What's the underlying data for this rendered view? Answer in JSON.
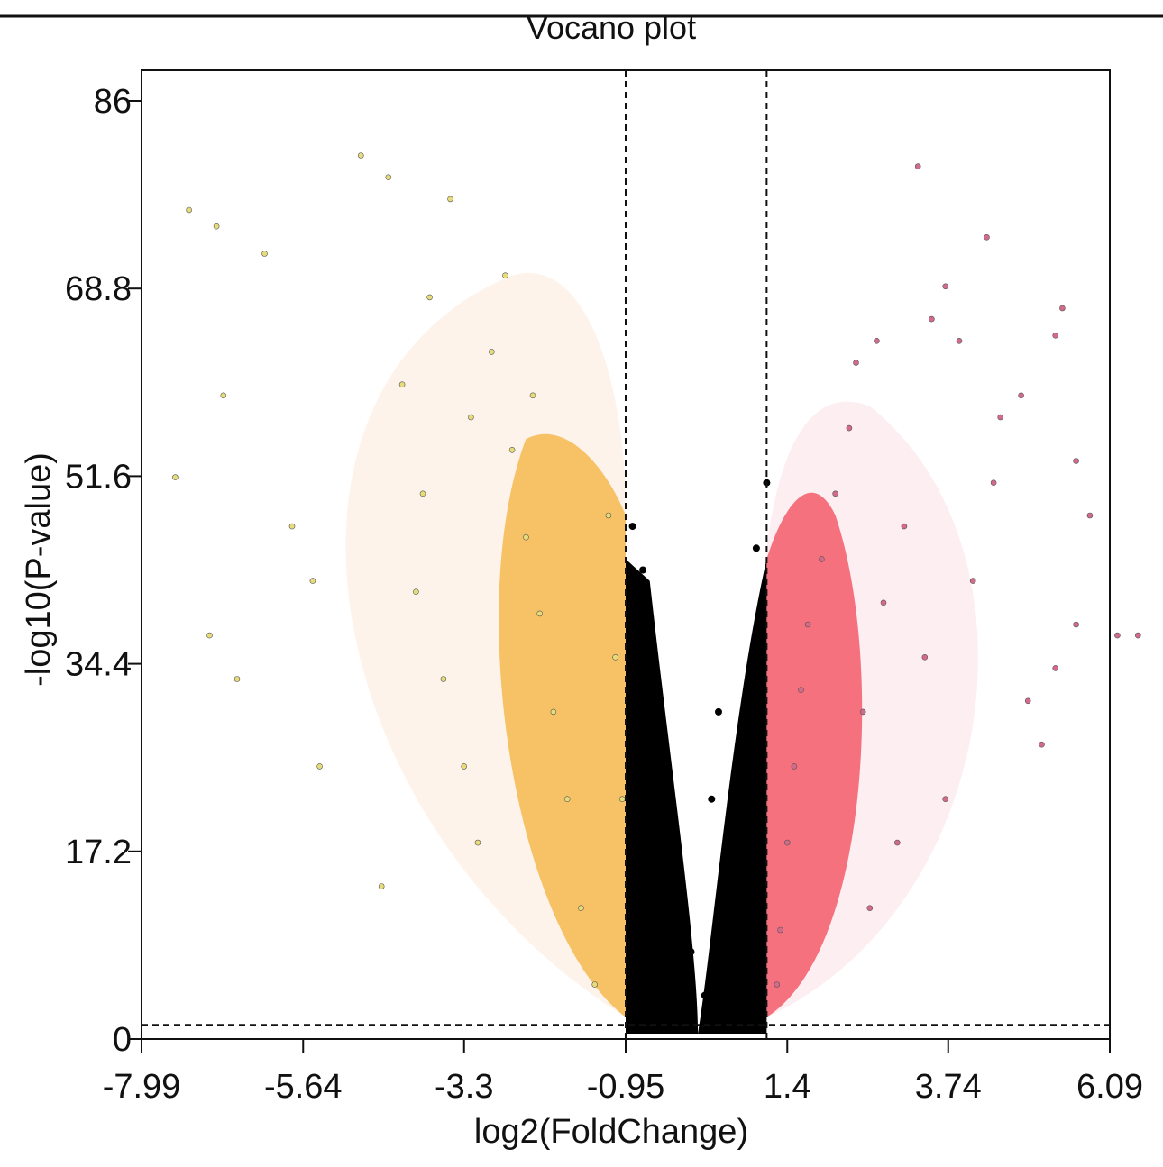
{
  "chart_data": {
    "type": "scatter",
    "title": "Vocano plot",
    "xlabel": "log2(FoldChange)",
    "ylabel": "-log10(P-value)",
    "xlim": [
      -7.99,
      6.09
    ],
    "ylim": [
      0,
      86
    ],
    "x_ticks": [
      "-7.99",
      "-5.64",
      "-3.3",
      "-0.95",
      "1.4",
      "3.74",
      "6.09"
    ],
    "y_ticks": [
      "0",
      "17.2",
      "34.4",
      "51.6",
      "68.8",
      "86"
    ],
    "thresholds": {
      "log2fc_low": -0.95,
      "log2fc_high": 1.1,
      "neg_log10_p": 1.3
    },
    "grid": false,
    "legend": "none",
    "colors": {
      "down": "#f5b84e",
      "down_outer": "#e8dc7a",
      "not_significant": "#000000",
      "up": "#f25a68",
      "up_outer": "#d46a8a"
    },
    "series": [
      {
        "values": [
          [
            -7.3,
            76
          ],
          [
            -6.9,
            74.5
          ],
          [
            -6.2,
            72
          ],
          [
            -4.8,
            81
          ],
          [
            -4.4,
            79
          ],
          [
            -7.5,
            51.5
          ],
          [
            -6.8,
            59
          ],
          [
            -7.0,
            37
          ],
          [
            -6.6,
            33
          ],
          [
            -5.8,
            47
          ],
          [
            -5.5,
            42
          ],
          [
            -5.4,
            25
          ],
          [
            -4.5,
            14
          ],
          [
            -3.8,
            68
          ],
          [
            -3.5,
            77
          ],
          [
            -4.2,
            60
          ],
          [
            -3.9,
            50
          ],
          [
            -4.0,
            41
          ],
          [
            -3.6,
            33
          ],
          [
            -3.3,
            25
          ],
          [
            -3.1,
            18
          ],
          [
            -2.9,
            63
          ],
          [
            -2.6,
            54
          ],
          [
            -2.4,
            46
          ],
          [
            -2.2,
            39
          ],
          [
            -2.0,
            30
          ],
          [
            -1.8,
            22
          ],
          [
            -1.6,
            12
          ],
          [
            -1.4,
            5
          ],
          [
            -1.2,
            48
          ],
          [
            -1.1,
            35
          ],
          [
            -1.0,
            22
          ],
          [
            -2.7,
            70
          ],
          [
            -3.2,
            57
          ],
          [
            -2.3,
            59
          ]
        ]
      },
      {
        "values": [
          [
            -0.85,
            47
          ],
          [
            -0.7,
            43
          ],
          [
            -0.6,
            36
          ],
          [
            -0.5,
            30
          ],
          [
            -0.4,
            25
          ],
          [
            -0.3,
            20
          ],
          [
            -0.2,
            14
          ],
          [
            0.0,
            8
          ],
          [
            0.2,
            4
          ],
          [
            0.35,
            1
          ],
          [
            0.5,
            3
          ],
          [
            0.6,
            8
          ],
          [
            0.7,
            14
          ],
          [
            0.8,
            22
          ],
          [
            0.9,
            30
          ],
          [
            1.0,
            38
          ],
          [
            0.95,
            45
          ],
          [
            1.1,
            51
          ],
          [
            0.4,
            30
          ],
          [
            0.3,
            22
          ],
          [
            -0.6,
            12
          ],
          [
            -0.9,
            33
          ],
          [
            0.7,
            6
          ],
          [
            -0.1,
            2
          ]
        ]
      },
      {
        "values": [
          [
            3.3,
            80
          ],
          [
            4.3,
            73.5
          ],
          [
            3.7,
            69
          ],
          [
            3.5,
            66
          ],
          [
            3.9,
            64
          ],
          [
            5.4,
            67
          ],
          [
            5.3,
            64.5
          ],
          [
            4.8,
            59
          ],
          [
            4.5,
            57
          ],
          [
            2.7,
            64
          ],
          [
            2.4,
            62
          ],
          [
            5.6,
            53
          ],
          [
            5.8,
            48
          ],
          [
            6.2,
            37
          ],
          [
            6.5,
            37
          ],
          [
            5.6,
            38
          ],
          [
            5.1,
            27
          ],
          [
            5.3,
            34
          ],
          [
            4.9,
            31
          ],
          [
            2.3,
            56
          ],
          [
            2.1,
            50
          ],
          [
            1.9,
            44
          ],
          [
            1.7,
            38
          ],
          [
            1.6,
            32
          ],
          [
            1.5,
            25
          ],
          [
            1.4,
            18
          ],
          [
            1.3,
            10
          ],
          [
            1.25,
            5
          ],
          [
            2.5,
            30
          ],
          [
            2.8,
            40
          ],
          [
            3.1,
            47
          ],
          [
            3.4,
            35
          ],
          [
            3.7,
            22
          ],
          [
            4.1,
            42
          ],
          [
            4.4,
            51
          ],
          [
            3.0,
            18
          ],
          [
            2.6,
            12
          ]
        ]
      }
    ]
  }
}
